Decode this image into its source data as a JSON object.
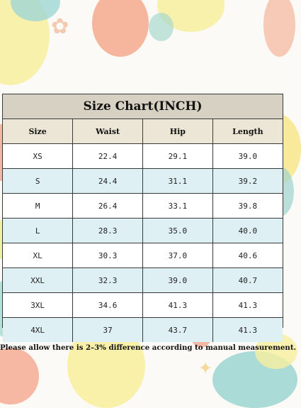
{
  "title": "Size Chart(INCH)",
  "columns": [
    "Size",
    "Waist",
    "Hip",
    "Length"
  ],
  "rows": [
    [
      "XS",
      "22.4",
      "29.1",
      "39.0"
    ],
    [
      "S",
      "24.4",
      "31.1",
      "39.2"
    ],
    [
      "M",
      "26.4",
      "33.1",
      "39.8"
    ],
    [
      "L",
      "28.3",
      "35.0",
      "40.0"
    ],
    [
      "XL",
      "30.3",
      "37.0",
      "40.6"
    ],
    [
      "XXL",
      "32.3",
      "39.0",
      "40.7"
    ],
    [
      "3XL",
      "34.6",
      "41.3",
      "41.3"
    ],
    [
      "4XL",
      "37",
      "43.7",
      "41.3"
    ]
  ],
  "note": "Please allow there is 2–3% difference according to manual measurement."
}
